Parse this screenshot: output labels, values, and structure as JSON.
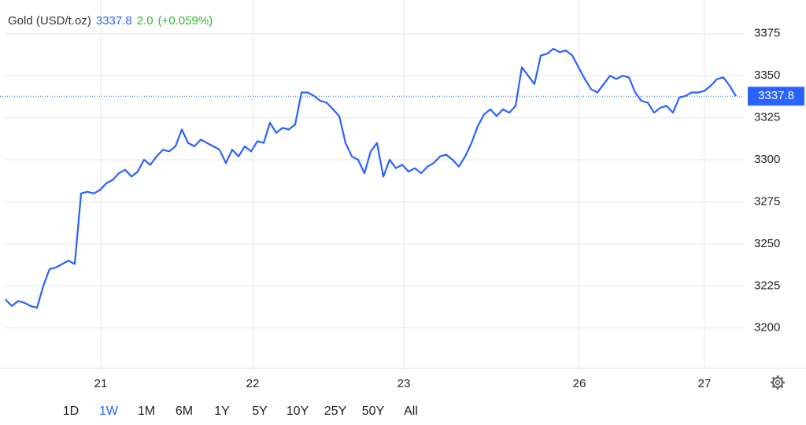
{
  "header": {
    "name": "Gold (USD/t.oz)",
    "price": "3337.8",
    "change": "2.0",
    "change_pct": "(+0.059%)"
  },
  "chart_data": {
    "type": "line",
    "x": [
      0,
      1,
      2,
      3,
      4,
      5,
      6,
      7,
      8,
      9,
      10,
      11,
      12,
      13,
      14,
      15,
      16,
      17,
      18,
      19,
      20,
      21,
      22,
      23,
      24,
      25,
      26,
      27,
      28,
      29,
      30,
      31,
      32,
      33,
      34,
      35,
      36,
      37,
      38,
      39,
      40,
      41,
      42,
      43,
      44,
      45,
      46,
      47,
      48,
      49,
      50,
      51,
      52,
      53,
      54,
      55,
      56,
      57,
      58,
      59,
      60,
      61,
      62,
      63,
      64,
      65,
      66,
      67,
      68,
      69,
      70,
      71,
      72,
      73,
      74,
      75,
      76,
      77,
      78,
      79,
      80,
      81,
      82,
      83,
      84,
      85,
      86,
      87,
      88,
      89,
      90,
      91,
      92,
      93,
      94,
      95,
      96,
      97,
      98,
      99,
      100,
      101,
      102,
      103,
      104,
      105,
      106,
      107,
      108,
      109,
      110,
      111,
      112,
      113,
      114,
      115,
      116
    ],
    "values": [
      3217,
      3213,
      3216,
      3215,
      3213,
      3212,
      3225,
      3235,
      3236,
      3238,
      3240,
      3238,
      3280,
      3281,
      3280,
      3282,
      3286,
      3288,
      3292,
      3294,
      3290,
      3293,
      3300,
      3297,
      3302,
      3306,
      3305,
      3308,
      3318,
      3310,
      3308,
      3312,
      3310,
      3308,
      3306,
      3298,
      3306,
      3302,
      3308,
      3305,
      3311,
      3310,
      3322,
      3316,
      3319,
      3318,
      3321,
      3340,
      3340,
      3338,
      3335,
      3334,
      3330,
      3326,
      3310,
      3302,
      3300,
      3292,
      3305,
      3310,
      3290,
      3300,
      3295,
      3297,
      3293,
      3295,
      3292,
      3296,
      3298,
      3302,
      3303,
      3300,
      3296,
      3302,
      3310,
      3320,
      3327,
      3330,
      3326,
      3330,
      3328,
      3332,
      3355,
      3350,
      3345,
      3362,
      3363,
      3366,
      3364,
      3365,
      3362,
      3355,
      3348,
      3342,
      3340,
      3345,
      3350,
      3348,
      3350,
      3349,
      3340,
      3335,
      3334,
      3328,
      3331,
      3332,
      3328,
      3337,
      3338,
      3340,
      3340,
      3341,
      3344,
      3348,
      3349,
      3344,
      3337.8
    ],
    "color": "#2962ff",
    "xlim": [
      0,
      117.25
    ],
    "xticks": [
      {
        "value": 15.125,
        "label": "21"
      },
      {
        "value": 39.25,
        "label": "22"
      },
      {
        "value": 63.25,
        "label": "23"
      },
      {
        "value": 91.125,
        "label": "26"
      },
      {
        "value": 111,
        "label": "27"
      }
    ],
    "ylim": [
      3176,
      3395
    ],
    "yticks": [
      3200,
      3225,
      3250,
      3275,
      3300,
      3325,
      3350,
      3375
    ],
    "grid": true
  },
  "ranges": {
    "items": [
      "1D",
      "1W",
      "1M",
      "6M",
      "1Y",
      "5Y",
      "10Y",
      "25Y",
      "50Y",
      "All"
    ],
    "selected": "1W"
  }
}
